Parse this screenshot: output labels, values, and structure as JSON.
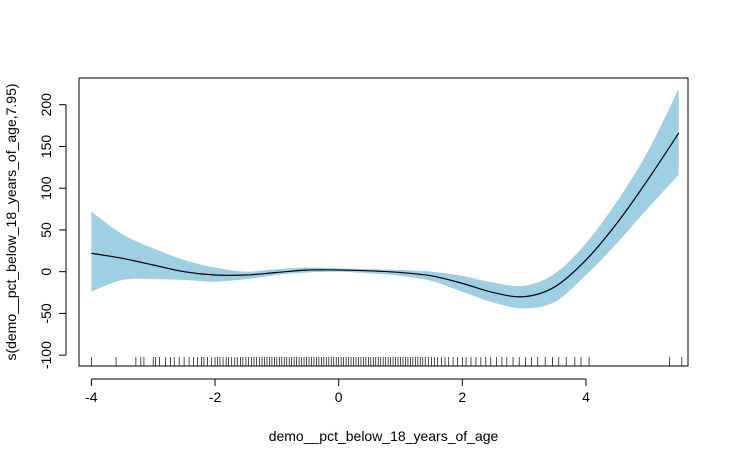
{
  "chart_data": {
    "type": "line",
    "title": "",
    "xlabel": "demo__pct_below_18_years_of_age",
    "ylabel": "s(demo__pct_below_18_years_of_age,7.95)",
    "xlim": [
      -4.2,
      5.65
    ],
    "ylim": [
      -113,
      232
    ],
    "x_ticks": [
      -4,
      -2,
      0,
      2,
      4
    ],
    "y_ticks": [
      -100,
      -50,
      0,
      50,
      100,
      150,
      200
    ],
    "grid": false,
    "colors": {
      "band": "#9ecfe2",
      "line": "#000000",
      "frame": "#000000"
    },
    "series": [
      {
        "kind": "smooth-with-confidence-band",
        "x": [
          -4.0,
          -3.5,
          -3.0,
          -2.5,
          -2.0,
          -1.5,
          -1.0,
          -0.5,
          0.0,
          0.5,
          1.0,
          1.5,
          2.0,
          2.5,
          3.0,
          3.5,
          4.0,
          4.5,
          5.0,
          5.5
        ],
        "y": [
          22,
          16,
          8,
          0,
          -4,
          -4,
          -1,
          2,
          2,
          1,
          -1,
          -5,
          -14,
          -25,
          -30,
          -18,
          14,
          58,
          110,
          166
        ],
        "lower": [
          -24,
          -10,
          -9,
          -10,
          -12,
          -9,
          -4,
          -1,
          0,
          -2,
          -5,
          -11,
          -24,
          -37,
          -44,
          -36,
          -4,
          34,
          76,
          116
        ],
        "upper": [
          72,
          45,
          28,
          14,
          5,
          0,
          3,
          5,
          4,
          3,
          2,
          0,
          -5,
          -13,
          -17,
          -2,
          34,
          84,
          144,
          219
        ]
      }
    ],
    "rug": [
      -4.0,
      -3.6,
      -3.28,
      -3.2,
      -3.15,
      -3.0,
      -2.96,
      -2.9,
      -2.8,
      -2.72,
      -2.66,
      -2.58,
      -2.5,
      -2.42,
      -2.35,
      -2.28,
      -2.22,
      -2.18,
      -2.12,
      -2.06,
      -2.0,
      -1.96,
      -1.92,
      -1.87,
      -1.82,
      -1.78,
      -1.73,
      -1.68,
      -1.64,
      -1.59,
      -1.55,
      -1.5,
      -1.46,
      -1.41,
      -1.37,
      -1.33,
      -1.28,
      -1.24,
      -1.2,
      -1.16,
      -1.12,
      -1.08,
      -1.04,
      -1.0,
      -0.96,
      -0.92,
      -0.88,
      -0.84,
      -0.8,
      -0.76,
      -0.72,
      -0.68,
      -0.64,
      -0.6,
      -0.56,
      -0.52,
      -0.48,
      -0.44,
      -0.4,
      -0.36,
      -0.32,
      -0.28,
      -0.24,
      -0.2,
      -0.16,
      -0.12,
      -0.08,
      -0.04,
      0.0,
      0.04,
      0.08,
      0.12,
      0.16,
      0.2,
      0.24,
      0.28,
      0.32,
      0.36,
      0.4,
      0.44,
      0.48,
      0.52,
      0.56,
      0.6,
      0.64,
      0.68,
      0.72,
      0.76,
      0.8,
      0.84,
      0.88,
      0.92,
      0.96,
      1.0,
      1.04,
      1.08,
      1.12,
      1.16,
      1.2,
      1.24,
      1.28,
      1.32,
      1.36,
      1.4,
      1.45,
      1.5,
      1.55,
      1.6,
      1.66,
      1.72,
      1.78,
      1.85,
      1.92,
      2.0,
      2.06,
      2.14,
      2.22,
      2.3,
      2.38,
      2.46,
      2.55,
      2.64,
      2.72,
      2.82,
      2.92,
      3.02,
      3.12,
      3.22,
      3.34,
      3.46,
      3.56,
      3.68,
      3.82,
      3.92,
      4.05,
      5.35,
      5.55
    ]
  }
}
